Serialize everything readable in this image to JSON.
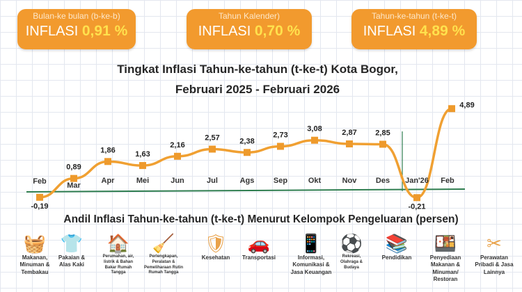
{
  "cards": [
    {
      "subtitle": "Bulan-ke bulan (b-ke-b)",
      "label": "INFLASI",
      "value": "0,91 %"
    },
    {
      "subtitle": "Tahun Kalender)",
      "label": "INFLASI",
      "value": "0,70 %"
    },
    {
      "subtitle": "Tahun-ke-tahun (t-ke-t)",
      "label": "INFLASI",
      "value": "4,89 %"
    }
  ],
  "chart_data": {
    "type": "line",
    "title": "Tingkat Inflasi Tahun-ke-tahun (t-ke-t) Kota Bogor,",
    "subtitle": "Februari 2025 - Februari 2026",
    "categories": [
      "Feb",
      "Mar",
      "Apr",
      "Mei",
      "Jun",
      "Jul",
      "Ags",
      "Sep",
      "Okt",
      "Nov",
      "Des",
      "Jan'26",
      "Feb"
    ],
    "values": [
      -0.19,
      0.89,
      1.86,
      1.63,
      2.16,
      2.57,
      2.38,
      2.73,
      3.08,
      2.87,
      2.85,
      -0.21,
      4.89
    ],
    "value_labels": [
      "-0,19",
      "0,89",
      "1,86",
      "1,63",
      "2,16",
      "2,57",
      "2,38",
      "2,73",
      "3,08",
      "2,87",
      "2,85",
      "-0,21",
      "4,89"
    ],
    "line_color": "#f0a032",
    "axis_color": "#2e7d4f",
    "grid": false
  },
  "groups_title": "Andil Inflasi Tahun-ke-tahun (t-ke-t) Menurut Kelompok Pengeluaran (persen)",
  "groups": [
    {
      "icon": "food-basket-icon",
      "glyph": "🧺",
      "label": "Makanan, Minuman & Tembakau"
    },
    {
      "icon": "tshirt-icon",
      "glyph": "👕",
      "label": "Pakaian & Alas Kaki"
    },
    {
      "icon": "house-icon",
      "glyph": "🏠",
      "label": "Perumahan, air, listrik & Bahan Bakar Rumah Tangga"
    },
    {
      "icon": "household-icon",
      "glyph": "🧹",
      "label": "Perlengkapan, Peralatan & Pemeliharaan Rutin Rumah Tangga"
    },
    {
      "icon": "shield-health-icon",
      "glyph": "🛡",
      "label": "Kesehatan"
    },
    {
      "icon": "transport-icon",
      "glyph": "🚗",
      "label": "Transportasi"
    },
    {
      "icon": "phone-icon",
      "glyph": "📱",
      "label": "Informasi, Komunikasi & Jasa Keuangan"
    },
    {
      "icon": "sports-icon",
      "glyph": "⚽",
      "label": "Rekreasi, Olahraga & Budaya"
    },
    {
      "icon": "books-icon",
      "glyph": "📚",
      "label": "Pendidikan"
    },
    {
      "icon": "restaurant-icon",
      "glyph": "🍱",
      "label": "Penyediaan Makanan & Minuman/ Restoran"
    },
    {
      "icon": "scissors-icon",
      "glyph": "✂",
      "label": "Perawatan Pribadi & Jasa Lainnya"
    }
  ]
}
